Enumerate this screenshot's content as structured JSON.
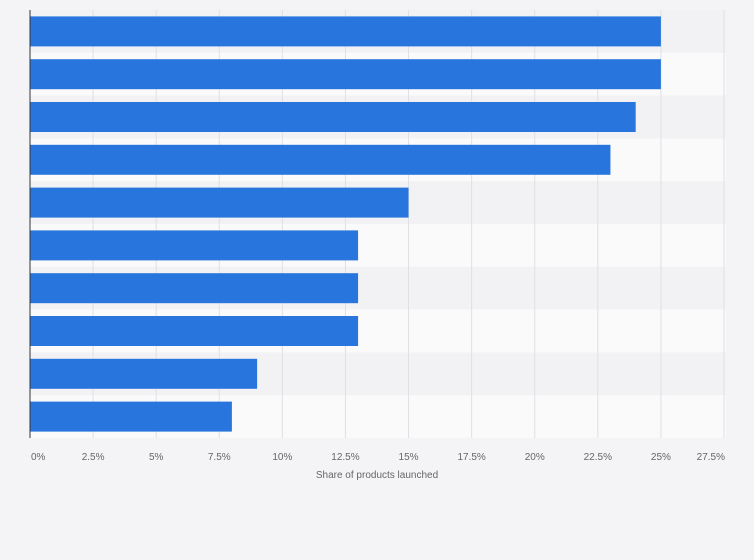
{
  "chart_data": {
    "type": "bar",
    "orientation": "horizontal",
    "title": "",
    "xlabel": "Share of products launched",
    "ylabel": "",
    "categories": [
      "",
      "",
      "",
      "",
      "",
      "",
      "",
      "",
      "",
      ""
    ],
    "values": [
      25,
      25,
      24,
      23,
      15,
      13,
      13,
      13,
      9,
      8
    ],
    "unit": "%",
    "xlim": [
      0,
      27.5
    ],
    "xticks": [
      "0%",
      "2.5%",
      "5%",
      "7.5%",
      "10%",
      "12.5%",
      "15%",
      "17.5%",
      "20%",
      "22.5%",
      "25%",
      "27.5%"
    ],
    "grid": true,
    "legend": "none",
    "colors": {
      "bar": "#2876dd",
      "background": "#f4f4f6",
      "band_light": "#fafafa",
      "band_dark": "#f2f2f4",
      "gridline": "#e0e0e4",
      "axis": "#333333",
      "text": "#666666"
    }
  }
}
